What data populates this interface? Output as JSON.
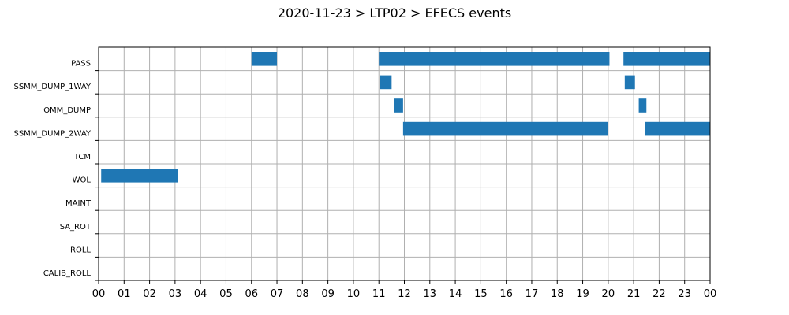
{
  "chart_data": {
    "type": "timeline",
    "title": "2020-11-23 > LTP02 > EFECS events",
    "xlabel": "",
    "ylabel": "",
    "x_unit": "hour",
    "xlim": [
      0,
      24
    ],
    "x_tick_labels": [
      "00",
      "01",
      "02",
      "03",
      "04",
      "05",
      "06",
      "07",
      "08",
      "09",
      "10",
      "11",
      "12",
      "13",
      "14",
      "15",
      "16",
      "17",
      "18",
      "19",
      "20",
      "21",
      "22",
      "23",
      "00"
    ],
    "categories": [
      "PASS",
      "SSMM_DUMP_1WAY",
      "OMM_DUMP",
      "SSMM_DUMP_2WAY",
      "TCM",
      "WOL",
      "MAINT",
      "SA_ROT",
      "ROLL",
      "CALIB_ROLL"
    ],
    "grid": true,
    "bar_color": "#1f77b4",
    "events": [
      {
        "category": "PASS",
        "start": 6.0,
        "end": 7.0
      },
      {
        "category": "PASS",
        "start": 11.0,
        "end": 20.05
      },
      {
        "category": "PASS",
        "start": 20.6,
        "end": 24.0
      },
      {
        "category": "SSMM_DUMP_1WAY",
        "start": 11.05,
        "end": 11.5
      },
      {
        "category": "SSMM_DUMP_1WAY",
        "start": 20.65,
        "end": 21.05
      },
      {
        "category": "OMM_DUMP",
        "start": 11.6,
        "end": 11.95
      },
      {
        "category": "OMM_DUMP",
        "start": 21.2,
        "end": 21.5
      },
      {
        "category": "SSMM_DUMP_2WAY",
        "start": 11.95,
        "end": 20.0
      },
      {
        "category": "SSMM_DUMP_2WAY",
        "start": 21.45,
        "end": 24.0
      },
      {
        "category": "WOL",
        "start": 0.1,
        "end": 3.1
      }
    ]
  }
}
